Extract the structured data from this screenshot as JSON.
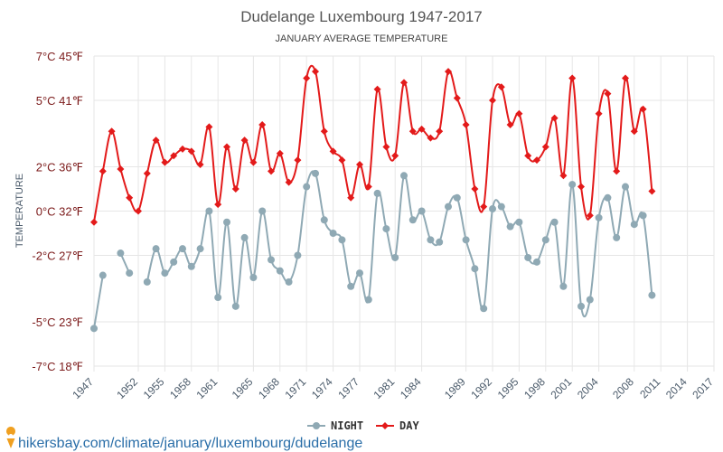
{
  "chart_data": {
    "type": "line",
    "title": "Dudelange Luxembourg 1947-2017",
    "subtitle": "JANUARY AVERAGE TEMPERATURE",
    "ylabel": "TEMPERATURE",
    "ylim": [
      -7,
      7
    ],
    "y_ticks": [
      {
        "value": 7,
        "label": "7°C 45℉"
      },
      {
        "value": 5,
        "label": "5°C 41℉"
      },
      {
        "value": 2,
        "label": "2°C 36℉"
      },
      {
        "value": 0,
        "label": "0°C 32℉"
      },
      {
        "value": -2,
        "label": "-2°C 27℉"
      },
      {
        "value": -5,
        "label": "-5°C 23℉"
      },
      {
        "value": -7,
        "label": "-7°C 18℉"
      }
    ],
    "x_ticks": [
      1947,
      1952,
      1955,
      1958,
      1961,
      1965,
      1968,
      1971,
      1974,
      1977,
      1981,
      1984,
      1989,
      1992,
      1995,
      1998,
      2001,
      2004,
      2008,
      2011,
      2014,
      2017
    ],
    "legend_position": "bottom",
    "grid": true,
    "series": [
      {
        "name": "NIGHT",
        "color": "#8fa9b4",
        "points": [
          {
            "x": 1947,
            "y": -5.3
          },
          {
            "x": 1948,
            "y": -2.9
          },
          {
            "x": 1950,
            "y": -1.9
          },
          {
            "x": 1951,
            "y": -2.8
          },
          {
            "x": 1953,
            "y": -3.2
          },
          {
            "x": 1954,
            "y": -1.7
          },
          {
            "x": 1955,
            "y": -2.8
          },
          {
            "x": 1956,
            "y": -2.3
          },
          {
            "x": 1957,
            "y": -1.7
          },
          {
            "x": 1958,
            "y": -2.5
          },
          {
            "x": 1959,
            "y": -1.7
          },
          {
            "x": 1960,
            "y": 0.0
          },
          {
            "x": 1961,
            "y": -3.9
          },
          {
            "x": 1962,
            "y": -0.5
          },
          {
            "x": 1963,
            "y": -4.3
          },
          {
            "x": 1964,
            "y": -1.2
          },
          {
            "x": 1965,
            "y": -3.0
          },
          {
            "x": 1966,
            "y": 0.0
          },
          {
            "x": 1967,
            "y": -2.2
          },
          {
            "x": 1968,
            "y": -2.7
          },
          {
            "x": 1969,
            "y": -3.2
          },
          {
            "x": 1970,
            "y": -2.0
          },
          {
            "x": 1971,
            "y": 1.1
          },
          {
            "x": 1972,
            "y": 1.7
          },
          {
            "x": 1973,
            "y": -0.4
          },
          {
            "x": 1974,
            "y": -1.0
          },
          {
            "x": 1975,
            "y": -1.3
          },
          {
            "x": 1976,
            "y": -3.4
          },
          {
            "x": 1977,
            "y": -2.8
          },
          {
            "x": 1978,
            "y": -4.0
          },
          {
            "x": 1979,
            "y": 0.8
          },
          {
            "x": 1980,
            "y": -0.8
          },
          {
            "x": 1981,
            "y": -2.1
          },
          {
            "x": 1982,
            "y": 1.6
          },
          {
            "x": 1983,
            "y": -0.4
          },
          {
            "x": 1984,
            "y": 0.0
          },
          {
            "x": 1985,
            "y": -1.3
          },
          {
            "x": 1986,
            "y": -1.4
          },
          {
            "x": 1987,
            "y": 0.2
          },
          {
            "x": 1988,
            "y": 0.6
          },
          {
            "x": 1989,
            "y": -1.3
          },
          {
            "x": 1990,
            "y": -2.6
          },
          {
            "x": 1991,
            "y": -4.4
          },
          {
            "x": 1992,
            "y": 0.1
          },
          {
            "x": 1993,
            "y": 0.2
          },
          {
            "x": 1994,
            "y": -0.7
          },
          {
            "x": 1995,
            "y": -0.5
          },
          {
            "x": 1996,
            "y": -2.1
          },
          {
            "x": 1997,
            "y": -2.3
          },
          {
            "x": 1998,
            "y": -1.3
          },
          {
            "x": 1999,
            "y": -0.5
          },
          {
            "x": 2000,
            "y": -3.4
          },
          {
            "x": 2001,
            "y": 1.2
          },
          {
            "x": 2002,
            "y": -4.3
          },
          {
            "x": 2003,
            "y": -4.0
          },
          {
            "x": 2004,
            "y": -0.3
          },
          {
            "x": 2005,
            "y": 0.6
          },
          {
            "x": 2006,
            "y": -1.2
          },
          {
            "x": 2007,
            "y": 1.1
          },
          {
            "x": 2008,
            "y": -0.6
          },
          {
            "x": 2009,
            "y": -0.2
          },
          {
            "x": 2010,
            "y": -3.8
          }
        ]
      },
      {
        "name": "DAY",
        "color": "#e31a1a",
        "points": [
          {
            "x": 1947,
            "y": -0.5
          },
          {
            "x": 1948,
            "y": 1.8
          },
          {
            "x": 1949,
            "y": 3.6
          },
          {
            "x": 1950,
            "y": 1.9
          },
          {
            "x": 1951,
            "y": 0.6
          },
          {
            "x": 1952,
            "y": 0.0
          },
          {
            "x": 1953,
            "y": 1.7
          },
          {
            "x": 1954,
            "y": 3.2
          },
          {
            "x": 1955,
            "y": 2.2
          },
          {
            "x": 1956,
            "y": 2.5
          },
          {
            "x": 1957,
            "y": 2.8
          },
          {
            "x": 1958,
            "y": 2.7
          },
          {
            "x": 1959,
            "y": 2.1
          },
          {
            "x": 1960,
            "y": 3.8
          },
          {
            "x": 1961,
            "y": 0.3
          },
          {
            "x": 1962,
            "y": 2.9
          },
          {
            "x": 1963,
            "y": 1.0
          },
          {
            "x": 1964,
            "y": 3.2
          },
          {
            "x": 1965,
            "y": 2.2
          },
          {
            "x": 1966,
            "y": 3.9
          },
          {
            "x": 1967,
            "y": 1.8
          },
          {
            "x": 1968,
            "y": 2.6
          },
          {
            "x": 1969,
            "y": 1.3
          },
          {
            "x": 1970,
            "y": 2.3
          },
          {
            "x": 1971,
            "y": 6.0
          },
          {
            "x": 1972,
            "y": 6.3
          },
          {
            "x": 1973,
            "y": 3.6
          },
          {
            "x": 1974,
            "y": 2.7
          },
          {
            "x": 1975,
            "y": 2.3
          },
          {
            "x": 1976,
            "y": 0.6
          },
          {
            "x": 1977,
            "y": 2.1
          },
          {
            "x": 1978,
            "y": 1.1
          },
          {
            "x": 1979,
            "y": 5.5
          },
          {
            "x": 1980,
            "y": 2.9
          },
          {
            "x": 1981,
            "y": 2.5
          },
          {
            "x": 1982,
            "y": 5.8
          },
          {
            "x": 1983,
            "y": 3.6
          },
          {
            "x": 1984,
            "y": 3.7
          },
          {
            "x": 1985,
            "y": 3.3
          },
          {
            "x": 1986,
            "y": 3.6
          },
          {
            "x": 1987,
            "y": 6.3
          },
          {
            "x": 1988,
            "y": 5.1
          },
          {
            "x": 1989,
            "y": 3.9
          },
          {
            "x": 1990,
            "y": 1.0
          },
          {
            "x": 1991,
            "y": 0.2
          },
          {
            "x": 1992,
            "y": 5.0
          },
          {
            "x": 1993,
            "y": 5.6
          },
          {
            "x": 1994,
            "y": 3.9
          },
          {
            "x": 1995,
            "y": 4.4
          },
          {
            "x": 1996,
            "y": 2.5
          },
          {
            "x": 1997,
            "y": 2.3
          },
          {
            "x": 1998,
            "y": 2.9
          },
          {
            "x": 1999,
            "y": 4.2
          },
          {
            "x": 2000,
            "y": 1.6
          },
          {
            "x": 2001,
            "y": 6.0
          },
          {
            "x": 2002,
            "y": 1.1
          },
          {
            "x": 2003,
            "y": -0.2
          },
          {
            "x": 2004,
            "y": 4.4
          },
          {
            "x": 2005,
            "y": 5.3
          },
          {
            "x": 2006,
            "y": 1.8
          },
          {
            "x": 2007,
            "y": 6.0
          },
          {
            "x": 2008,
            "y": 3.6
          },
          {
            "x": 2009,
            "y": 4.6
          },
          {
            "x": 2010,
            "y": 0.9
          }
        ]
      }
    ]
  },
  "source_text": "hikersbay.com/climate/january/luxembourg/dudelange"
}
